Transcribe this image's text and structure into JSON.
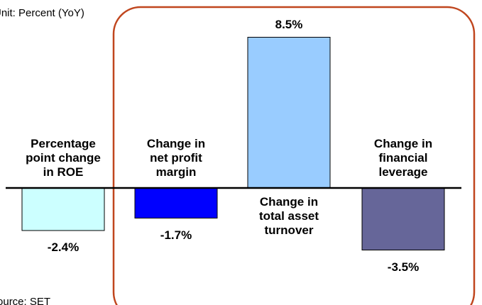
{
  "chart_data": {
    "type": "bar",
    "subtitle": "Unit: Percent (YoY)",
    "source": "Source: SET",
    "categories": [
      "Percentage\npoint change\nin ROE",
      "Change in\nnet profit\nmargin",
      "Change in\ntotal asset\nturnover",
      "Change in\nfinancial\nleverage"
    ],
    "values": [
      -2.4,
      -1.7,
      8.5,
      -3.5
    ],
    "value_labels": [
      "-2.4%",
      "-1.7%",
      "8.5%",
      "-3.5%"
    ],
    "colors": [
      "#ccffff",
      "#0000ff",
      "#99ccff",
      "#666699"
    ],
    "ylim": [
      -5,
      10
    ]
  }
}
